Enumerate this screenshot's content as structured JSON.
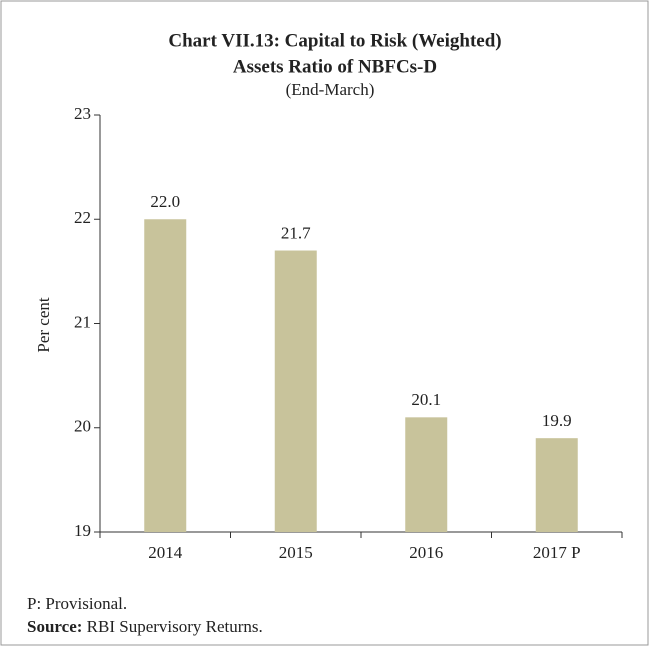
{
  "chart_data": {
    "type": "bar",
    "title": [
      "Chart VII.13: Capital to Risk (Weighted)",
      "Assets Ratio of NBFCs-D"
    ],
    "subtitle": "(End-March)",
    "ylabel": "Per cent",
    "categories": [
      "2014",
      "2015",
      "2016",
      "2017 P"
    ],
    "values": [
      22.0,
      21.7,
      20.1,
      19.9
    ],
    "value_labels": [
      "22.0",
      "21.7",
      "20.1",
      "19.9"
    ],
    "color": "#c8c39b",
    "ylim": [
      19,
      23
    ],
    "yticks": [
      19,
      20,
      21,
      22,
      23
    ],
    "grid": false,
    "notes": [
      "P: Provisional."
    ],
    "source": {
      "label": "Source:",
      "text": "RBI Supervisory Returns."
    }
  }
}
